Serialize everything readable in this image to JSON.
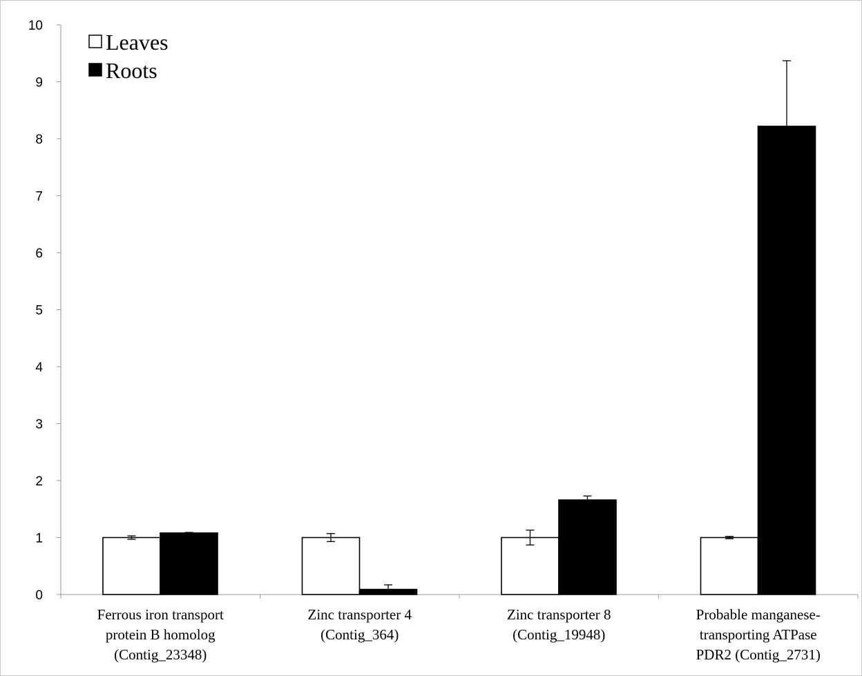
{
  "chart_data": {
    "type": "bar",
    "title": "",
    "xlabel": "",
    "ylabel": "",
    "ylim": [
      0,
      10
    ],
    "yticks": [
      "0",
      "1",
      "2",
      "3",
      "4",
      "5",
      "6",
      "7",
      "8",
      "9",
      "10"
    ],
    "grid": false,
    "legend_position": "top-left",
    "categories": [
      [
        "Ferrous iron transport",
        "protein B homolog",
        "(Contig_23348)"
      ],
      [
        "Zinc transporter 4",
        "(Contig_364)"
      ],
      [
        "Zinc transporter 8",
        "(Contig_19948)"
      ],
      [
        "Probable manganese-",
        "transporting ATPase",
        "PDR2 (Contig_2731)"
      ]
    ],
    "series": [
      {
        "name": "Leaves",
        "color": "#ffffff",
        "values": [
          1.0,
          1.0,
          1.0,
          1.0
        ],
        "errors": [
          0.03,
          0.07,
          0.13,
          0.02
        ]
      },
      {
        "name": "Roots",
        "color": "#000000",
        "values": [
          1.08,
          0.09,
          1.66,
          8.22
        ],
        "errors": [
          0.01,
          0.08,
          0.07,
          1.15
        ]
      }
    ]
  }
}
